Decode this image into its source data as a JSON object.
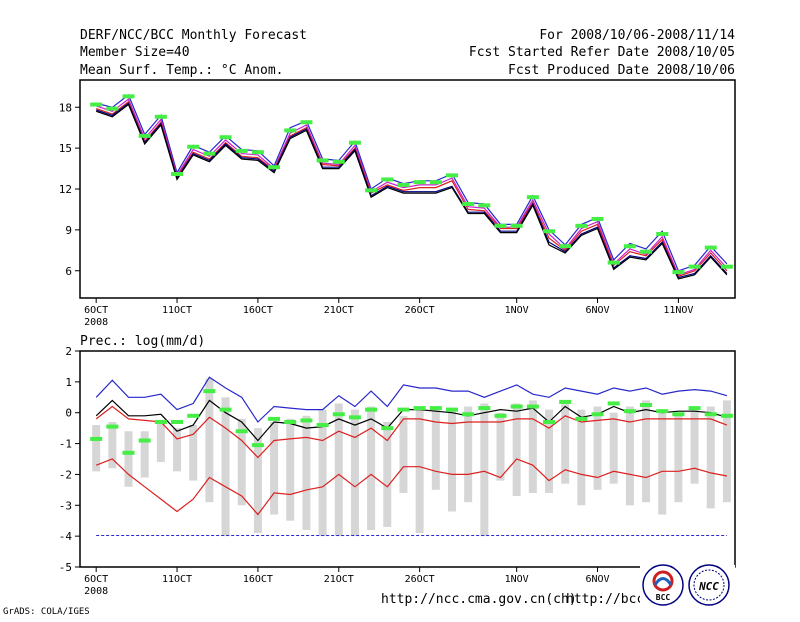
{
  "header": {
    "title_left_1": "DERF/NCC/BCC Monthly Forecast",
    "title_left_2": "Member Size=40",
    "title_left_3": "Mean Surf. Temp.: °C Anom.",
    "title_right_1": "For 2008/10/06-2008/11/14",
    "title_right_2": "Fcst Started Refer Date 2008/10/05",
    "title_right_3": "Fcst Produced Date 2008/10/06"
  },
  "footer": {
    "grads_credit": "GrADS: COLA/IGES",
    "url_1": "http://ncc.cma.gov.cn(ch)",
    "url_2": "http://bcc.",
    "logo_bcc_text": "BCC",
    "logo_ncc_text": "NCC"
  },
  "colors": {
    "ens_green": "#44ee44",
    "box_gray": "#d6d6d6",
    "red": "#dd2020",
    "blue": "#2828cc",
    "navy": "#000080",
    "magenta": "#cc22cc"
  },
  "chart_data": [
    {
      "type": "line",
      "title": "Mean Surf. Temp.: °C Anom.",
      "x_tick_labels": [
        "6OCT",
        "11OCT",
        "16OCT",
        "21OCT",
        "26OCT",
        "1NOV",
        "6NOV",
        "11NOV"
      ],
      "x_tick_days": [
        1,
        6,
        11,
        16,
        21,
        27,
        32,
        37
      ],
      "x_year_label": "2008",
      "x_range": [
        0,
        40.5
      ],
      "ylim": [
        4,
        20
      ],
      "y_ticks": [
        6,
        9,
        12,
        15,
        18
      ],
      "days": [
        1,
        2,
        3,
        4,
        5,
        6,
        7,
        8,
        9,
        10,
        11,
        12,
        13,
        14,
        15,
        16,
        17,
        18,
        19,
        20,
        21,
        22,
        23,
        24,
        25,
        26,
        27,
        28,
        29,
        30,
        31,
        32,
        33,
        34,
        35,
        36,
        37,
        38,
        39,
        40
      ],
      "ensemble_mean": [
        18.2,
        17.9,
        18.8,
        15.9,
        17.3,
        13.1,
        15.1,
        14.6,
        15.8,
        14.8,
        14.7,
        13.6,
        16.3,
        16.9,
        14.1,
        14.0,
        15.4,
        11.9,
        12.7,
        12.3,
        12.5,
        12.5,
        13.0,
        10.9,
        10.8,
        9.3,
        9.3,
        11.4,
        8.9,
        7.8,
        9.3,
        9.8,
        6.6,
        7.8,
        7.4,
        8.7,
        5.9,
        6.3,
        7.7,
        6.3
      ],
      "series": [
        {
          "name": "max",
          "color": "#2828cc",
          "values": [
            18.3,
            18.0,
            18.9,
            16.0,
            17.4,
            13.2,
            15.2,
            14.7,
            15.9,
            14.9,
            14.8,
            13.7,
            16.5,
            17.0,
            14.2,
            14.1,
            15.5,
            12.0,
            12.8,
            12.4,
            12.6,
            12.6,
            13.1,
            11.0,
            10.9,
            9.4,
            9.4,
            11.5,
            9.0,
            7.9,
            9.4,
            9.9,
            6.8,
            8.0,
            7.6,
            8.9,
            6.0,
            6.4,
            7.8,
            6.5
          ]
        },
        {
          "name": "upper",
          "color": "#cc22cc",
          "values": [
            18.1,
            17.7,
            18.6,
            15.7,
            17.1,
            13.0,
            14.9,
            14.4,
            15.6,
            14.6,
            14.5,
            13.5,
            16.1,
            16.7,
            13.9,
            13.8,
            15.2,
            11.8,
            12.5,
            12.1,
            12.3,
            12.3,
            12.8,
            10.7,
            10.6,
            9.2,
            9.2,
            11.2,
            8.7,
            7.6,
            9.1,
            9.6,
            6.5,
            7.6,
            7.2,
            8.5,
            5.7,
            6.1,
            7.5,
            6.2
          ]
        },
        {
          "name": "median",
          "color": "#dd2020",
          "values": [
            17.9,
            17.5,
            18.4,
            15.5,
            16.9,
            12.9,
            14.7,
            14.2,
            15.4,
            14.4,
            14.3,
            13.4,
            15.9,
            16.5,
            13.8,
            13.7,
            15.0,
            11.7,
            12.3,
            11.9,
            12.1,
            12.1,
            12.6,
            10.5,
            10.4,
            9.1,
            9.1,
            11.0,
            8.4,
            7.5,
            8.9,
            9.4,
            6.4,
            7.4,
            7.1,
            8.3,
            5.6,
            6.0,
            7.3,
            6.0
          ]
        },
        {
          "name": "lower",
          "color": "#000080",
          "values": [
            17.8,
            17.4,
            18.3,
            15.4,
            16.8,
            12.8,
            14.6,
            14.1,
            15.3,
            14.3,
            14.2,
            13.3,
            15.8,
            16.4,
            13.6,
            13.6,
            14.9,
            11.5,
            12.2,
            11.8,
            11.8,
            11.8,
            12.2,
            10.3,
            10.3,
            8.9,
            8.9,
            10.9,
            8.1,
            7.4,
            8.7,
            9.2,
            6.2,
            7.1,
            6.9,
            8.1,
            5.5,
            5.8,
            7.1,
            5.8
          ]
        },
        {
          "name": "min",
          "color": "#000000",
          "values": [
            17.7,
            17.3,
            18.2,
            15.3,
            16.7,
            12.7,
            14.5,
            14.0,
            15.2,
            14.2,
            14.1,
            13.2,
            15.7,
            16.3,
            13.5,
            13.5,
            14.8,
            11.4,
            12.1,
            11.7,
            11.7,
            11.7,
            12.1,
            10.2,
            10.2,
            8.8,
            8.8,
            10.8,
            7.9,
            7.3,
            8.6,
            9.1,
            6.1,
            7.0,
            6.8,
            8.0,
            5.4,
            5.7,
            7.0,
            5.7
          ]
        }
      ]
    },
    {
      "type": "line",
      "title": "Prec.: log(mm/d)",
      "x_tick_labels": [
        "6OCT",
        "11OCT",
        "16OCT",
        "21OCT",
        "26OCT",
        "1NOV",
        "6NOV",
        "11NOV"
      ],
      "x_tick_days": [
        1,
        6,
        11,
        16,
        21,
        27,
        32,
        37
      ],
      "x_year_label": "2008",
      "x_range": [
        0,
        40.5
      ],
      "ylim": [
        -5,
        2
      ],
      "y_ticks": [
        -5,
        -4,
        -3,
        -2,
        -1,
        0,
        1,
        2
      ],
      "days": [
        1,
        2,
        3,
        4,
        5,
        6,
        7,
        8,
        9,
        10,
        11,
        12,
        13,
        14,
        15,
        16,
        17,
        18,
        19,
        20,
        21,
        22,
        23,
        24,
        25,
        26,
        27,
        28,
        29,
        30,
        31,
        32,
        33,
        34,
        35,
        36,
        37,
        38,
        39,
        40
      ],
      "box_low": [
        -1.9,
        -1.8,
        -2.4,
        -2.1,
        -1.6,
        -1.9,
        -2.2,
        -2.9,
        -4.0,
        -3.0,
        -3.9,
        -3.3,
        -3.5,
        -3.8,
        -4.0,
        -4.0,
        -4.0,
        -3.8,
        -3.7,
        -2.6,
        -3.9,
        -2.5,
        -3.2,
        -2.9,
        -4.0,
        -2.2,
        -2.7,
        -2.6,
        -2.6,
        -2.3,
        -3.0,
        -2.5,
        -2.3,
        -3.0,
        -2.9,
        -3.3,
        -2.9,
        -2.3,
        -3.1,
        -2.9
      ],
      "box_high": [
        -0.4,
        -0.3,
        -0.6,
        -0.6,
        -0.3,
        -0.5,
        -0.4,
        1.1,
        0.5,
        -0.2,
        -0.5,
        -0.3,
        -0.2,
        -0.1,
        0.1,
        0.3,
        0.1,
        0.2,
        -0.3,
        -0.1,
        0.2,
        0.1,
        0.1,
        0.2,
        0.3,
        0.0,
        0.3,
        0.4,
        0.1,
        0.4,
        0.1,
        0.2,
        0.0,
        0.2,
        0.4,
        0.1,
        0.0,
        0.1,
        0.2,
        0.4
      ],
      "ensemble_mean": [
        -0.85,
        -0.45,
        -1.3,
        -0.9,
        -0.3,
        -0.3,
        -0.1,
        0.7,
        0.1,
        -0.6,
        -1.05,
        -0.2,
        -0.3,
        -0.25,
        -0.4,
        -0.05,
        -0.15,
        0.1,
        -0.5,
        0.1,
        0.15,
        0.15,
        0.1,
        -0.05,
        0.15,
        -0.1,
        0.2,
        0.2,
        -0.3,
        0.35,
        -0.2,
        -0.05,
        0.3,
        0.05,
        0.25,
        0.05,
        -0.05,
        0.15,
        -0.05,
        -0.1
      ],
      "reference_line": -3.98,
      "series": [
        {
          "name": "upper",
          "color": "#2828cc",
          "values": [
            0.5,
            1.05,
            0.5,
            0.5,
            0.6,
            0.1,
            0.3,
            1.15,
            0.8,
            0.5,
            -0.3,
            0.2,
            0.15,
            0.1,
            0.1,
            0.55,
            0.2,
            0.7,
            0.2,
            0.9,
            0.8,
            0.8,
            0.7,
            0.7,
            0.5,
            0.7,
            0.9,
            0.6,
            0.5,
            0.8,
            0.7,
            0.6,
            0.8,
            0.7,
            0.8,
            0.6,
            0.7,
            0.75,
            0.7,
            0.55
          ]
        },
        {
          "name": "mean",
          "color": "#000000",
          "values": [
            -0.1,
            0.4,
            -0.1,
            -0.1,
            -0.05,
            -0.6,
            -0.4,
            0.4,
            0.0,
            -0.3,
            -0.9,
            -0.3,
            -0.35,
            -0.5,
            -0.45,
            -0.2,
            -0.4,
            -0.2,
            -0.5,
            0.1,
            0.1,
            0.05,
            0.0,
            -0.1,
            0.0,
            0.1,
            0.05,
            0.15,
            -0.3,
            0.2,
            -0.15,
            -0.05,
            0.2,
            0.0,
            0.1,
            0.0,
            0.05,
            0.05,
            0.0,
            -0.15
          ]
        },
        {
          "name": "q_low",
          "color": "#dd2020",
          "values": [
            -0.2,
            0.2,
            -0.2,
            -0.25,
            -0.3,
            -0.85,
            -0.7,
            -0.15,
            -0.5,
            -0.9,
            -1.45,
            -0.9,
            -0.85,
            -0.8,
            -0.9,
            -0.6,
            -0.8,
            -0.5,
            -0.9,
            -0.2,
            -0.2,
            -0.3,
            -0.35,
            -0.3,
            -0.3,
            -0.3,
            -0.2,
            -0.2,
            -0.5,
            -0.1,
            -0.3,
            -0.25,
            -0.2,
            -0.3,
            -0.2,
            -0.2,
            -0.2,
            -0.2,
            -0.2,
            -0.4
          ]
        },
        {
          "name": "low",
          "color": "#dd2020",
          "values": [
            -1.7,
            -1.5,
            -2.0,
            -2.4,
            -2.8,
            -3.2,
            -2.8,
            -2.1,
            -2.4,
            -2.7,
            -3.3,
            -2.6,
            -2.65,
            -2.5,
            -2.4,
            -2.0,
            -2.4,
            -2.0,
            -2.4,
            -1.75,
            -1.75,
            -1.9,
            -2.0,
            -2.0,
            -1.9,
            -2.1,
            -1.5,
            -1.7,
            -2.2,
            -1.85,
            -2.0,
            -2.1,
            -1.9,
            -2.0,
            -2.1,
            -1.9,
            -1.9,
            -1.8,
            -1.95,
            -2.05
          ]
        }
      ]
    }
  ]
}
